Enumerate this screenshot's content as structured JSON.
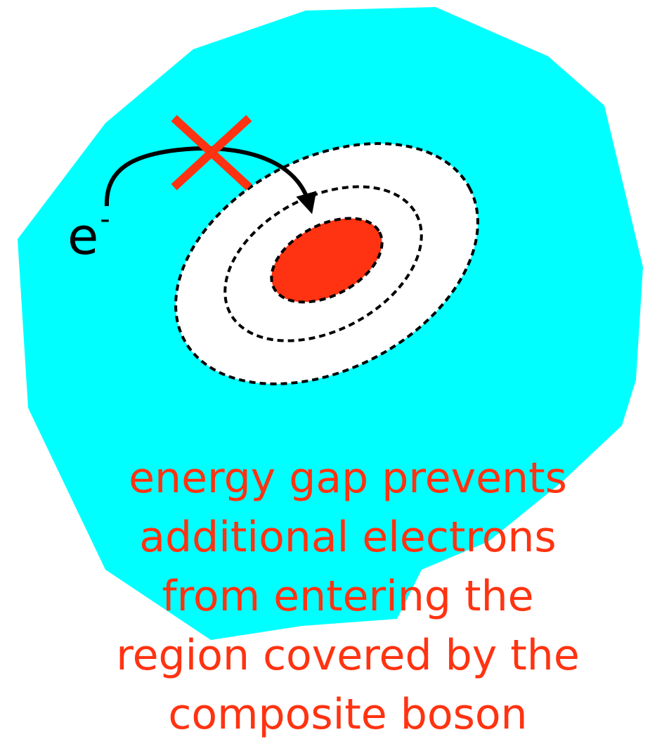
{
  "electron": {
    "symbol": "e",
    "charge": "-"
  },
  "caption": {
    "lines": [
      "energy gap prevents",
      "additional electrons",
      "from entering the",
      "region covered by the",
      "composite boson"
    ]
  },
  "colors": {
    "background_region": "#00ffff",
    "white_region": "#ffffff",
    "core": "#ff3311",
    "cross": "#ff3311",
    "arrow": "#000000",
    "caption_text": "#ff3311"
  },
  "icons": {
    "blocked_marker": "cross-icon",
    "hop_arrow": "curved-arrow-icon"
  }
}
